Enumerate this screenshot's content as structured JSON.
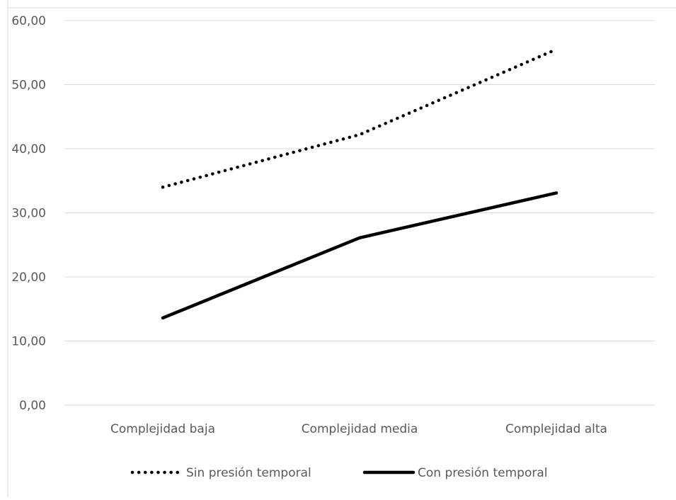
{
  "chart_data": {
    "type": "line",
    "categories": [
      "Complejidad baja",
      "Complejidad media",
      "Complejidad alta"
    ],
    "series": [
      {
        "name": "Sin presión temporal",
        "values": [
          34.0,
          42.2,
          55.5
        ],
        "style": "dotted",
        "color": "#000000"
      },
      {
        "name": "Con presión temporal",
        "values": [
          13.6,
          26.1,
          33.1
        ],
        "style": "solid",
        "color": "#000000"
      }
    ],
    "ylim": [
      0,
      60
    ],
    "yticks": [
      "0,00",
      "10,00",
      "20,00",
      "30,00",
      "40,00",
      "50,00",
      "60,00"
    ],
    "grid": true,
    "legend_position": "bottom",
    "gridline_color": "#d9d9d9",
    "text_color": "#595959"
  }
}
